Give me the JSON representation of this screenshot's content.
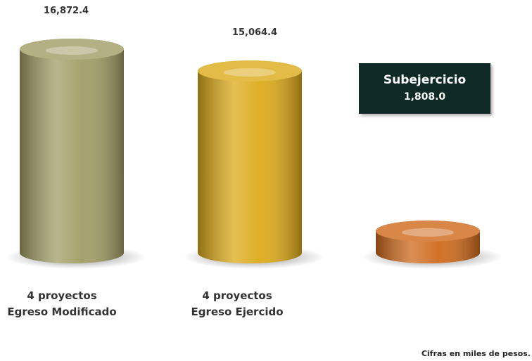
{
  "chart_data": {
    "type": "cylinder-bar",
    "categories": [
      "4 proyectos\nEgreso Modificado",
      "4 proyectos\nEgreso Ejercido",
      null
    ],
    "values": [
      16872.4,
      15064.4,
      1808.0
    ],
    "value_labels": [
      "16,872.4",
      "15,064.4",
      "1,808.0"
    ],
    "colors": [
      "#a19d66",
      "#dcaa1a",
      "#cf6a1c"
    ],
    "annotation": "Subejercicio",
    "note": "Cifras en miles de pesos."
  }
}
